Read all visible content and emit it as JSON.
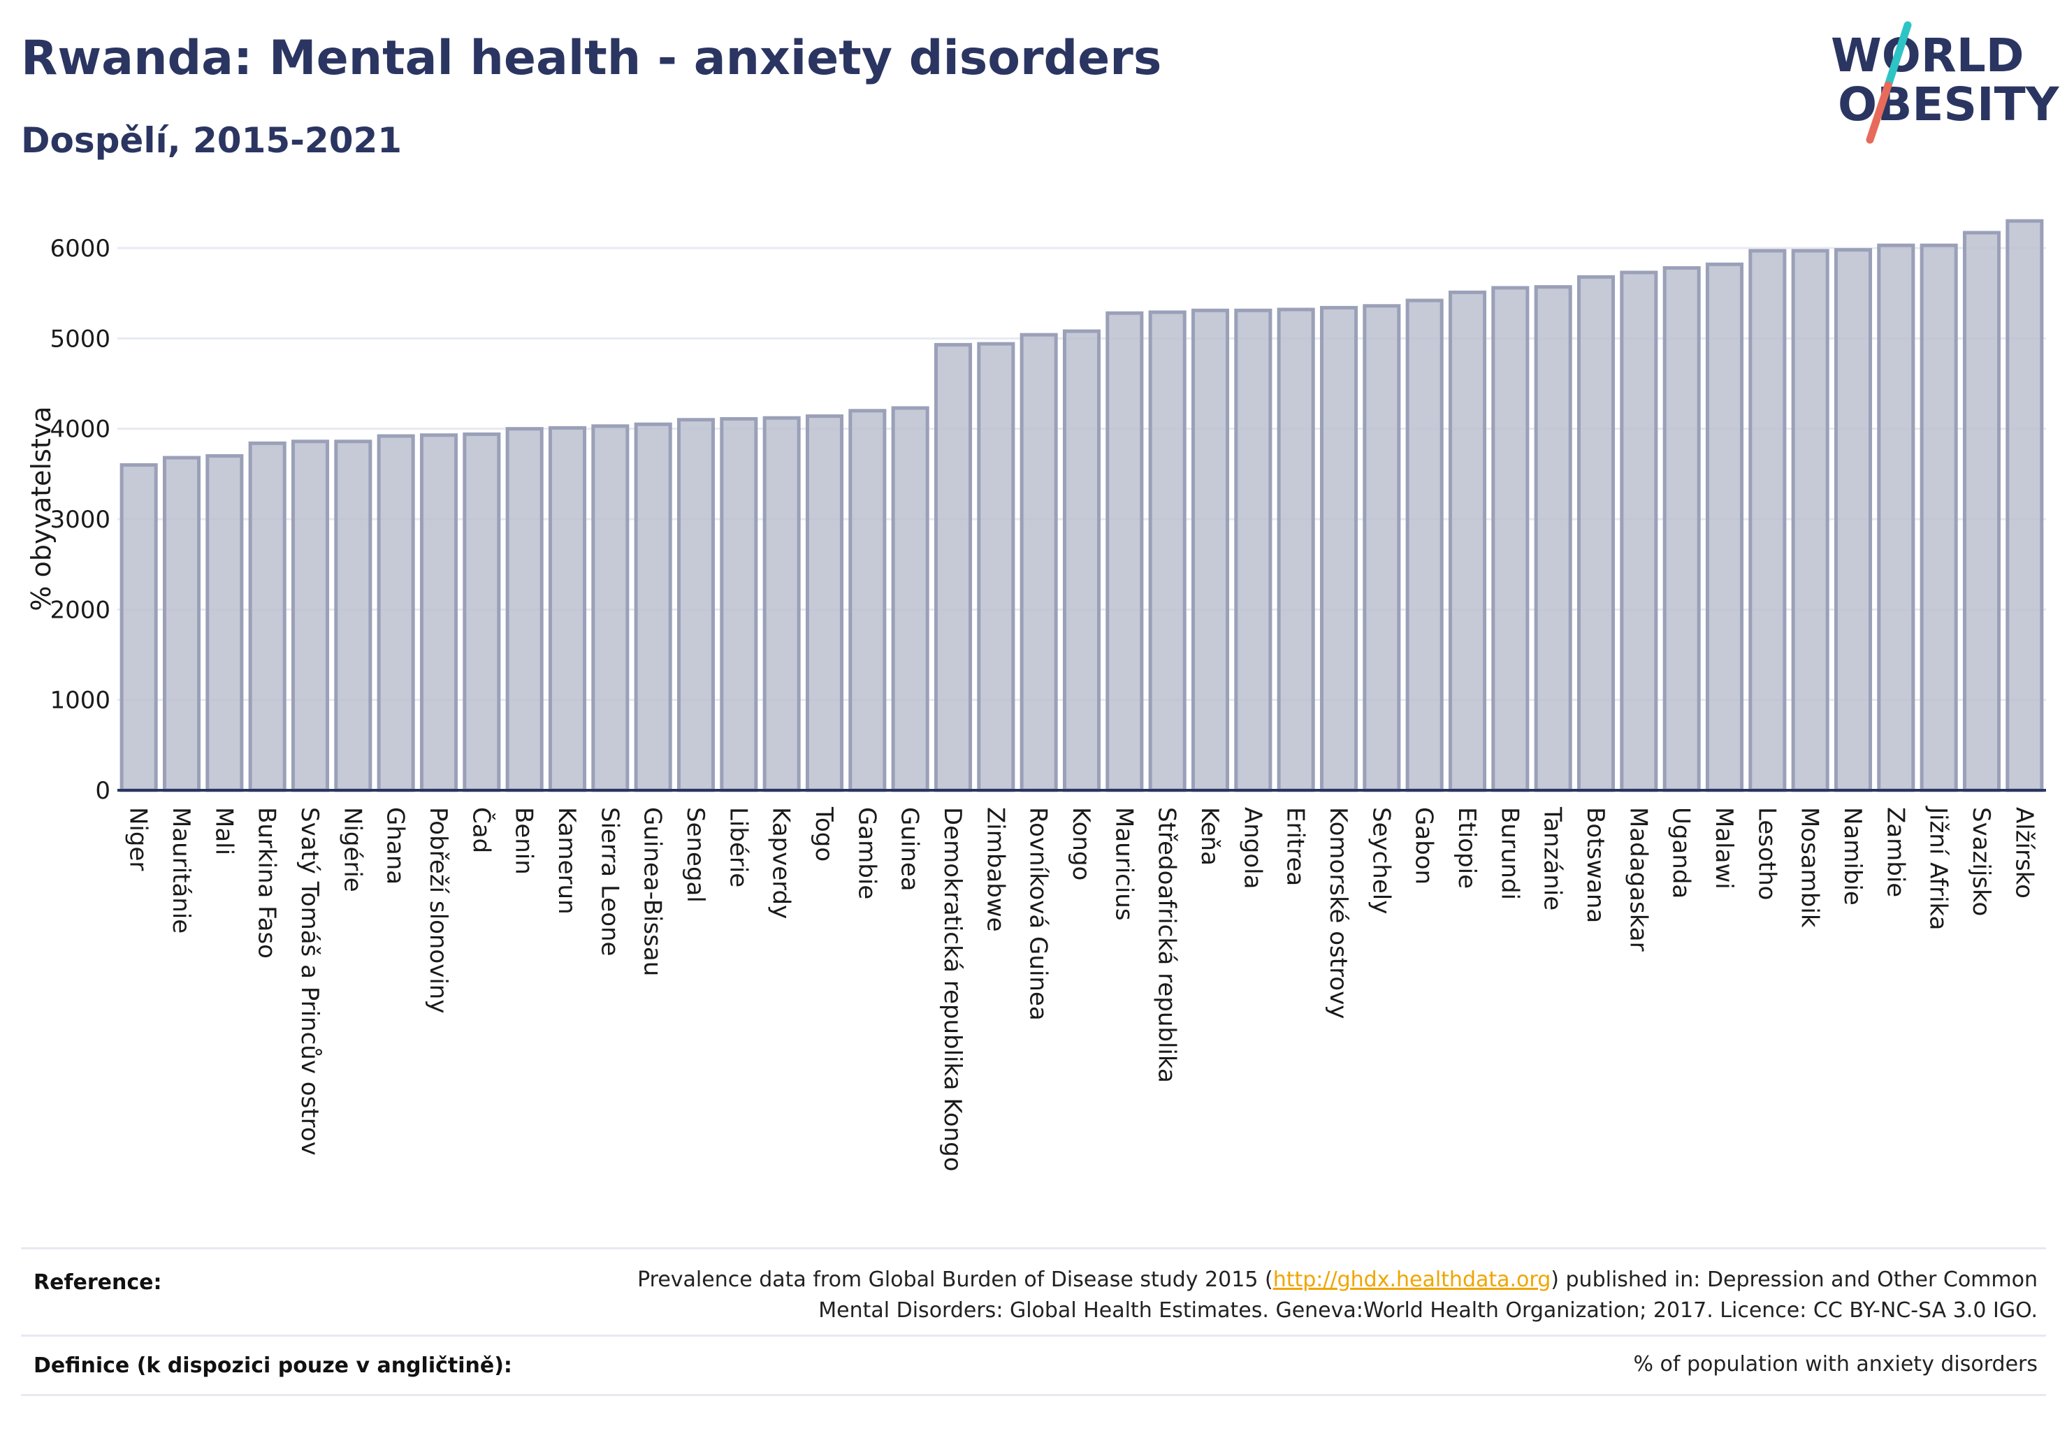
{
  "header": {
    "title": "Rwanda: Mental health - anxiety disorders",
    "subtitle": "Dospělí, 2015-2021"
  },
  "logo": {
    "line1": "WORLD",
    "line2": "OBESITY",
    "slash_colors": [
      "#2ec4c6",
      "#e86a5a"
    ],
    "text_color": "#2b3561"
  },
  "colors": {
    "bar_fill": "#bcc0cf",
    "bar_stroke": "#9aa0b8",
    "axis": "#2b3561",
    "grid": "#e8eaf2",
    "title": "#2b3561"
  },
  "chart_data": {
    "type": "bar",
    "ylabel": "% obyvatelstva",
    "ylim": [
      0,
      6300
    ],
    "yticks": [
      0,
      1000,
      2000,
      3000,
      4000,
      5000,
      6000
    ],
    "grid": true,
    "categories": [
      "Niger",
      "Mauritánie",
      "Mali",
      "Burkina Faso",
      "Svatý Tomáš a Princův ostrov",
      "Nigérie",
      "Ghana",
      "Pobřeží slonoviny",
      "Čad",
      "Benin",
      "Kamerun",
      "Sierra Leone",
      "Guinea-Bissau",
      "Senegal",
      "Libérie",
      "Kapverdy",
      "Togo",
      "Gambie",
      "Guinea",
      "Demokratická republika Kongo",
      "Zimbabwe",
      "Rovníková Guinea",
      "Kongo",
      "Mauricius",
      "Středoafrická republika",
      "Keňa",
      "Angola",
      "Eritrea",
      "Komorské ostrovy",
      "Seychely",
      "Gabon",
      "Etiopie",
      "Burundi",
      "Tanzánie",
      "Botswana",
      "Madagaskar",
      "Uganda",
      "Malawi",
      "Lesotho",
      "Mosambik",
      "Namibie",
      "Zambie",
      "Jižní Afrika",
      "Svazijsko",
      "Alžírsko"
    ],
    "values": [
      3600,
      3680,
      3700,
      3840,
      3860,
      3860,
      3920,
      3930,
      3940,
      4000,
      4010,
      4030,
      4050,
      4100,
      4110,
      4120,
      4140,
      4200,
      4230,
      4930,
      4940,
      5040,
      5080,
      5280,
      5290,
      5310,
      5310,
      5320,
      5340,
      5360,
      5420,
      5510,
      5560,
      5570,
      5680,
      5730,
      5780,
      5820,
      5970,
      5970,
      5980,
      6030,
      6030,
      6170,
      6300
    ]
  },
  "footer": {
    "reference_label": "Reference:",
    "reference_text_1": "Prevalence data from Global Burden of Disease study 2015 (",
    "reference_link": "http://ghdx.healthdata.org",
    "reference_text_2": ") published in: Depression and Other Common",
    "reference_text_3": "Mental Disorders: Global Health Estimates. Geneva:World Health Organization; 2017. Licence: CC BY-NC-SA 3.0 IGO.",
    "definition_label": "Definice (k dispozici pouze v angličtině):",
    "definition_text": "% of population with anxiety disorders"
  }
}
